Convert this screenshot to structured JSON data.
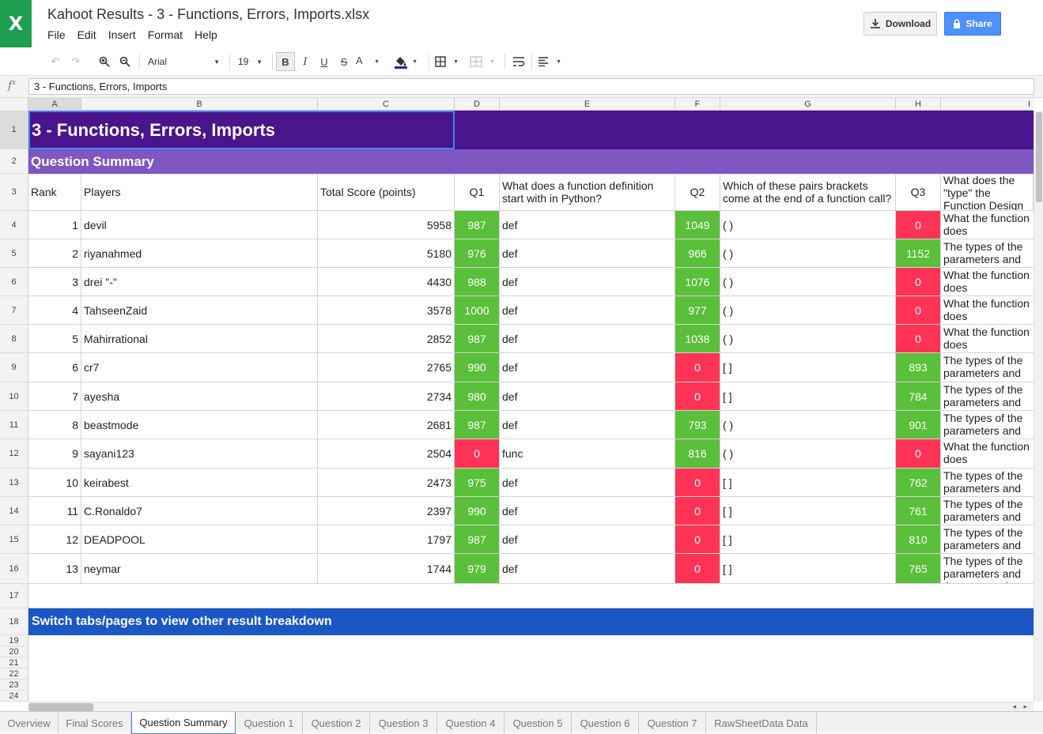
{
  "app": {
    "logo": "X",
    "title": "Kahoot Results - 3 - Functions, Errors, Imports.xlsx",
    "menu": [
      "File",
      "Edit",
      "Insert",
      "Format",
      "Help"
    ],
    "download_label": "Download",
    "share_label": "Share",
    "accent": "#4d90fe"
  },
  "toolbar": {
    "font": "Arial",
    "font_size": "19",
    "bold": "B",
    "italic": "I",
    "underline": "U",
    "strike": "S",
    "text_color": "A"
  },
  "formula": {
    "fx": "f",
    "value": "3 - Functions, Errors, Imports"
  },
  "columns": [
    "A",
    "B",
    "C",
    "D",
    "E",
    "F",
    "G",
    "H",
    "I"
  ],
  "rows_visible": [
    "1",
    "2",
    "3",
    "4",
    "5",
    "6",
    "7",
    "8",
    "9",
    "10",
    "11",
    "12",
    "13",
    "14",
    "15",
    "16",
    "17",
    "18",
    "19",
    "20",
    "21",
    "22",
    "23",
    "24"
  ],
  "sheet": {
    "title": "3 - Functions, Errors, Imports",
    "title_color": "#4a148c",
    "summary_label": "Question Summary",
    "summary_color": "#7e57c2",
    "headers": {
      "rank": "Rank",
      "players": "Players",
      "total": "Total Score (points)",
      "q1": "Q1",
      "q1_text": "What does a function definition start with in Python?",
      "q2": "Q2",
      "q2_text": "Which of these pairs brackets come at the end of a function call?",
      "q3": "Q3",
      "q3_text": "What does the \"type\" the Function Design you?"
    },
    "rows": [
      {
        "rank": "1",
        "player": "devil",
        "total": "5958",
        "q1": "987",
        "q1_ok": true,
        "a1": "def",
        "q2": "1049",
        "q2_ok": true,
        "a2": "( )",
        "q3": "0",
        "q3_ok": false,
        "a3": "What the function does"
      },
      {
        "rank": "2",
        "player": "riyanahmed",
        "total": "5180",
        "q1": "976",
        "q1_ok": true,
        "a1": "def",
        "q2": "966",
        "q2_ok": true,
        "a2": "( )",
        "q3": "1152",
        "q3_ok": true,
        "a3": "The types of the parameters and the return value"
      },
      {
        "rank": "3",
        "player": "drei \"-\"",
        "total": "4430",
        "q1": "988",
        "q1_ok": true,
        "a1": "def",
        "q2": "1076",
        "q2_ok": true,
        "a2": "( )",
        "q3": "0",
        "q3_ok": false,
        "a3": "What the function does"
      },
      {
        "rank": "4",
        "player": "TahseenZaid",
        "total": "3578",
        "q1": "1000",
        "q1_ok": true,
        "a1": "def",
        "q2": "977",
        "q2_ok": true,
        "a2": "( )",
        "q3": "0",
        "q3_ok": false,
        "a3": "What the function does"
      },
      {
        "rank": "5",
        "player": "Mahirrational",
        "total": "2852",
        "q1": "987",
        "q1_ok": true,
        "a1": "def",
        "q2": "1038",
        "q2_ok": true,
        "a2": "( )",
        "q3": "0",
        "q3_ok": false,
        "a3": "What the function does"
      },
      {
        "rank": "6",
        "player": "cr7",
        "total": "2765",
        "q1": "990",
        "q1_ok": true,
        "a1": "def",
        "q2": "0",
        "q2_ok": false,
        "a2": "[ ]",
        "q3": "893",
        "q3_ok": true,
        "a3": "The types of the parameters and the return value"
      },
      {
        "rank": "7",
        "player": "ayesha",
        "total": "2734",
        "q1": "980",
        "q1_ok": true,
        "a1": "def",
        "q2": "0",
        "q2_ok": false,
        "a2": "[ ]",
        "q3": "784",
        "q3_ok": true,
        "a3": "The types of the parameters and the return value"
      },
      {
        "rank": "8",
        "player": "beastmode",
        "total": "2681",
        "q1": "987",
        "q1_ok": true,
        "a1": "def",
        "q2": "793",
        "q2_ok": true,
        "a2": "( )",
        "q3": "901",
        "q3_ok": true,
        "a3": "The types of the parameters and the return value"
      },
      {
        "rank": "9",
        "player": "sayani123",
        "total": "2504",
        "q1": "0",
        "q1_ok": false,
        "a1": "func",
        "q2": "816",
        "q2_ok": true,
        "a2": "( )",
        "q3": "0",
        "q3_ok": false,
        "a3": "What the function does"
      },
      {
        "rank": "10",
        "player": "keirabest",
        "total": "2473",
        "q1": "975",
        "q1_ok": true,
        "a1": "def",
        "q2": "0",
        "q2_ok": false,
        "a2": "[ ]",
        "q3": "762",
        "q3_ok": true,
        "a3": "The types of the parameters and the return value"
      },
      {
        "rank": "11",
        "player": "C.Ronaldo7",
        "total": "2397",
        "q1": "990",
        "q1_ok": true,
        "a1": "def",
        "q2": "0",
        "q2_ok": false,
        "a2": "[ ]",
        "q3": "761",
        "q3_ok": true,
        "a3": "The types of the parameters and the return value"
      },
      {
        "rank": "12",
        "player": "DEADPOOL",
        "total": "1797",
        "q1": "987",
        "q1_ok": true,
        "a1": "def",
        "q2": "0",
        "q2_ok": false,
        "a2": "[ ]",
        "q3": "810",
        "q3_ok": true,
        "a3": "The types of the parameters and the return value"
      },
      {
        "rank": "13",
        "player": "neymar",
        "total": "1744",
        "q1": "979",
        "q1_ok": true,
        "a1": "def",
        "q2": "0",
        "q2_ok": false,
        "a2": "[ ]",
        "q3": "765",
        "q3_ok": true,
        "a3": "The types of the parameters and the return value"
      }
    ],
    "footer_note": "Switch tabs/pages to view other result breakdown",
    "footer_color": "#1a56c4",
    "correct_color": "#5abf3a",
    "wrong_color": "#ff3355"
  },
  "tabs": [
    {
      "label": "Overview",
      "active": false
    },
    {
      "label": "Final Scores",
      "active": false
    },
    {
      "label": "Question Summary",
      "active": true
    },
    {
      "label": "Question 1",
      "active": false
    },
    {
      "label": "Question 2",
      "active": false
    },
    {
      "label": "Question 3",
      "active": false
    },
    {
      "label": "Question 4",
      "active": false
    },
    {
      "label": "Question 5",
      "active": false
    },
    {
      "label": "Question 6",
      "active": false
    },
    {
      "label": "Question 7",
      "active": false
    },
    {
      "label": "RawSheetData Data",
      "active": false
    }
  ]
}
